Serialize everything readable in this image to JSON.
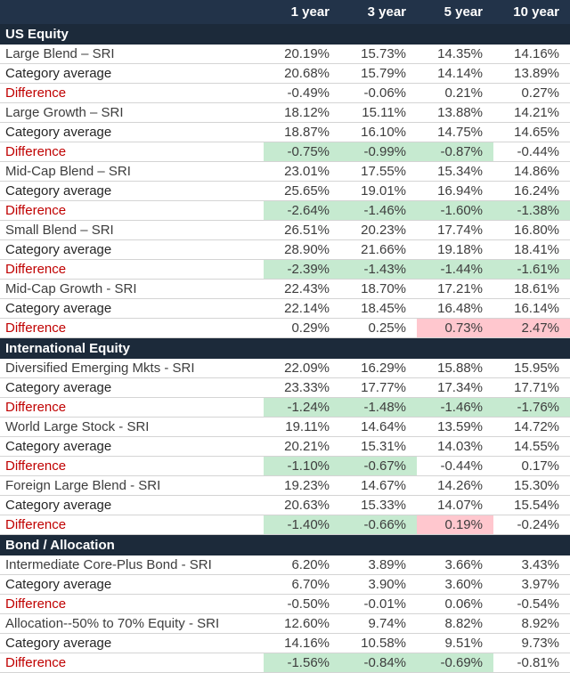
{
  "colors": {
    "header_bg": "#223349",
    "section_bg": "#1c2a3a",
    "difference_text": "#c00000",
    "negative_highlight_bg": "#c6ead0",
    "positive_highlight_bg": "#ffc7ce"
  },
  "chart_data": {
    "type": "table",
    "columns": [
      "",
      "1 year",
      "3 year",
      "5 year",
      "10 year"
    ],
    "row_labels": {
      "category": "Category average",
      "difference": "Difference"
    },
    "sections": [
      {
        "title": "US Equity",
        "groups": [
          {
            "name": "Large Blend – SRI",
            "sri": [
              "20.19%",
              "15.73%",
              "14.35%",
              "14.16%"
            ],
            "category": [
              "20.68%",
              "15.79%",
              "14.14%",
              "13.89%"
            ],
            "difference": [
              "-0.49%",
              "-0.06%",
              "0.21%",
              "0.27%"
            ],
            "difference_highlight": [
              "none",
              "none",
              "none",
              "none"
            ]
          },
          {
            "name": "Large Growth – SRI",
            "sri": [
              "18.12%",
              "15.11%",
              "13.88%",
              "14.21%"
            ],
            "category": [
              "18.87%",
              "16.10%",
              "14.75%",
              "14.65%"
            ],
            "difference": [
              "-0.75%",
              "-0.99%",
              "-0.87%",
              "-0.44%"
            ],
            "difference_highlight": [
              "green",
              "green",
              "green",
              "none"
            ]
          },
          {
            "name": "Mid-Cap Blend – SRI",
            "sri": [
              "23.01%",
              "17.55%",
              "15.34%",
              "14.86%"
            ],
            "category": [
              "25.65%",
              "19.01%",
              "16.94%",
              "16.24%"
            ],
            "difference": [
              "-2.64%",
              "-1.46%",
              "-1.60%",
              "-1.38%"
            ],
            "difference_highlight": [
              "green",
              "green",
              "green",
              "green"
            ]
          },
          {
            "name": "Small Blend – SRI",
            "sri": [
              "26.51%",
              "20.23%",
              "17.74%",
              "16.80%"
            ],
            "category": [
              "28.90%",
              "21.66%",
              "19.18%",
              "18.41%"
            ],
            "difference": [
              "-2.39%",
              "-1.43%",
              "-1.44%",
              "-1.61%"
            ],
            "difference_highlight": [
              "green",
              "green",
              "green",
              "green"
            ]
          },
          {
            "name": "Mid-Cap Growth - SRI",
            "sri": [
              "22.43%",
              "18.70%",
              "17.21%",
              "18.61%"
            ],
            "category": [
              "22.14%",
              "18.45%",
              "16.48%",
              "16.14%"
            ],
            "difference": [
              "0.29%",
              "0.25%",
              "0.73%",
              "2.47%"
            ],
            "difference_highlight": [
              "none",
              "none",
              "pink",
              "pink"
            ]
          }
        ]
      },
      {
        "title": "International Equity",
        "groups": [
          {
            "name": "Diversified Emerging Mkts - SRI",
            "sri": [
              "22.09%",
              "16.29%",
              "15.88%",
              "15.95%"
            ],
            "category": [
              "23.33%",
              "17.77%",
              "17.34%",
              "17.71%"
            ],
            "difference": [
              "-1.24%",
              "-1.48%",
              "-1.46%",
              "-1.76%"
            ],
            "difference_highlight": [
              "green",
              "green",
              "green",
              "green"
            ]
          },
          {
            "name": "World Large Stock - SRI",
            "sri": [
              "19.11%",
              "14.64%",
              "13.59%",
              "14.72%"
            ],
            "category": [
              "20.21%",
              "15.31%",
              "14.03%",
              "14.55%"
            ],
            "difference": [
              "-1.10%",
              "-0.67%",
              "-0.44%",
              "0.17%"
            ],
            "difference_highlight": [
              "green",
              "green",
              "none",
              "none"
            ]
          },
          {
            "name": "Foreign Large Blend - SRI",
            "sri": [
              "19.23%",
              "14.67%",
              "14.26%",
              "15.30%"
            ],
            "category": [
              "20.63%",
              "15.33%",
              "14.07%",
              "15.54%"
            ],
            "difference": [
              "-1.40%",
              "-0.66%",
              "0.19%",
              "-0.24%"
            ],
            "difference_highlight": [
              "green",
              "green",
              "pink",
              "none"
            ]
          }
        ]
      },
      {
        "title": "Bond / Allocation",
        "groups": [
          {
            "name": "Intermediate Core-Plus Bond - SRI",
            "sri": [
              "6.20%",
              "3.89%",
              "3.66%",
              "3.43%"
            ],
            "category": [
              "6.70%",
              "3.90%",
              "3.60%",
              "3.97%"
            ],
            "difference": [
              "-0.50%",
              "-0.01%",
              "0.06%",
              "-0.54%"
            ],
            "difference_highlight": [
              "none",
              "none",
              "none",
              "none"
            ]
          },
          {
            "name": "Allocation--50% to 70% Equity - SRI",
            "sri": [
              "12.60%",
              "9.74%",
              "8.82%",
              "8.92%"
            ],
            "category": [
              "14.16%",
              "10.58%",
              "9.51%",
              "9.73%"
            ],
            "difference": [
              "-1.56%",
              "-0.84%",
              "-0.69%",
              "-0.81%"
            ],
            "difference_highlight": [
              "green",
              "green",
              "green",
              "none"
            ]
          }
        ]
      }
    ]
  }
}
